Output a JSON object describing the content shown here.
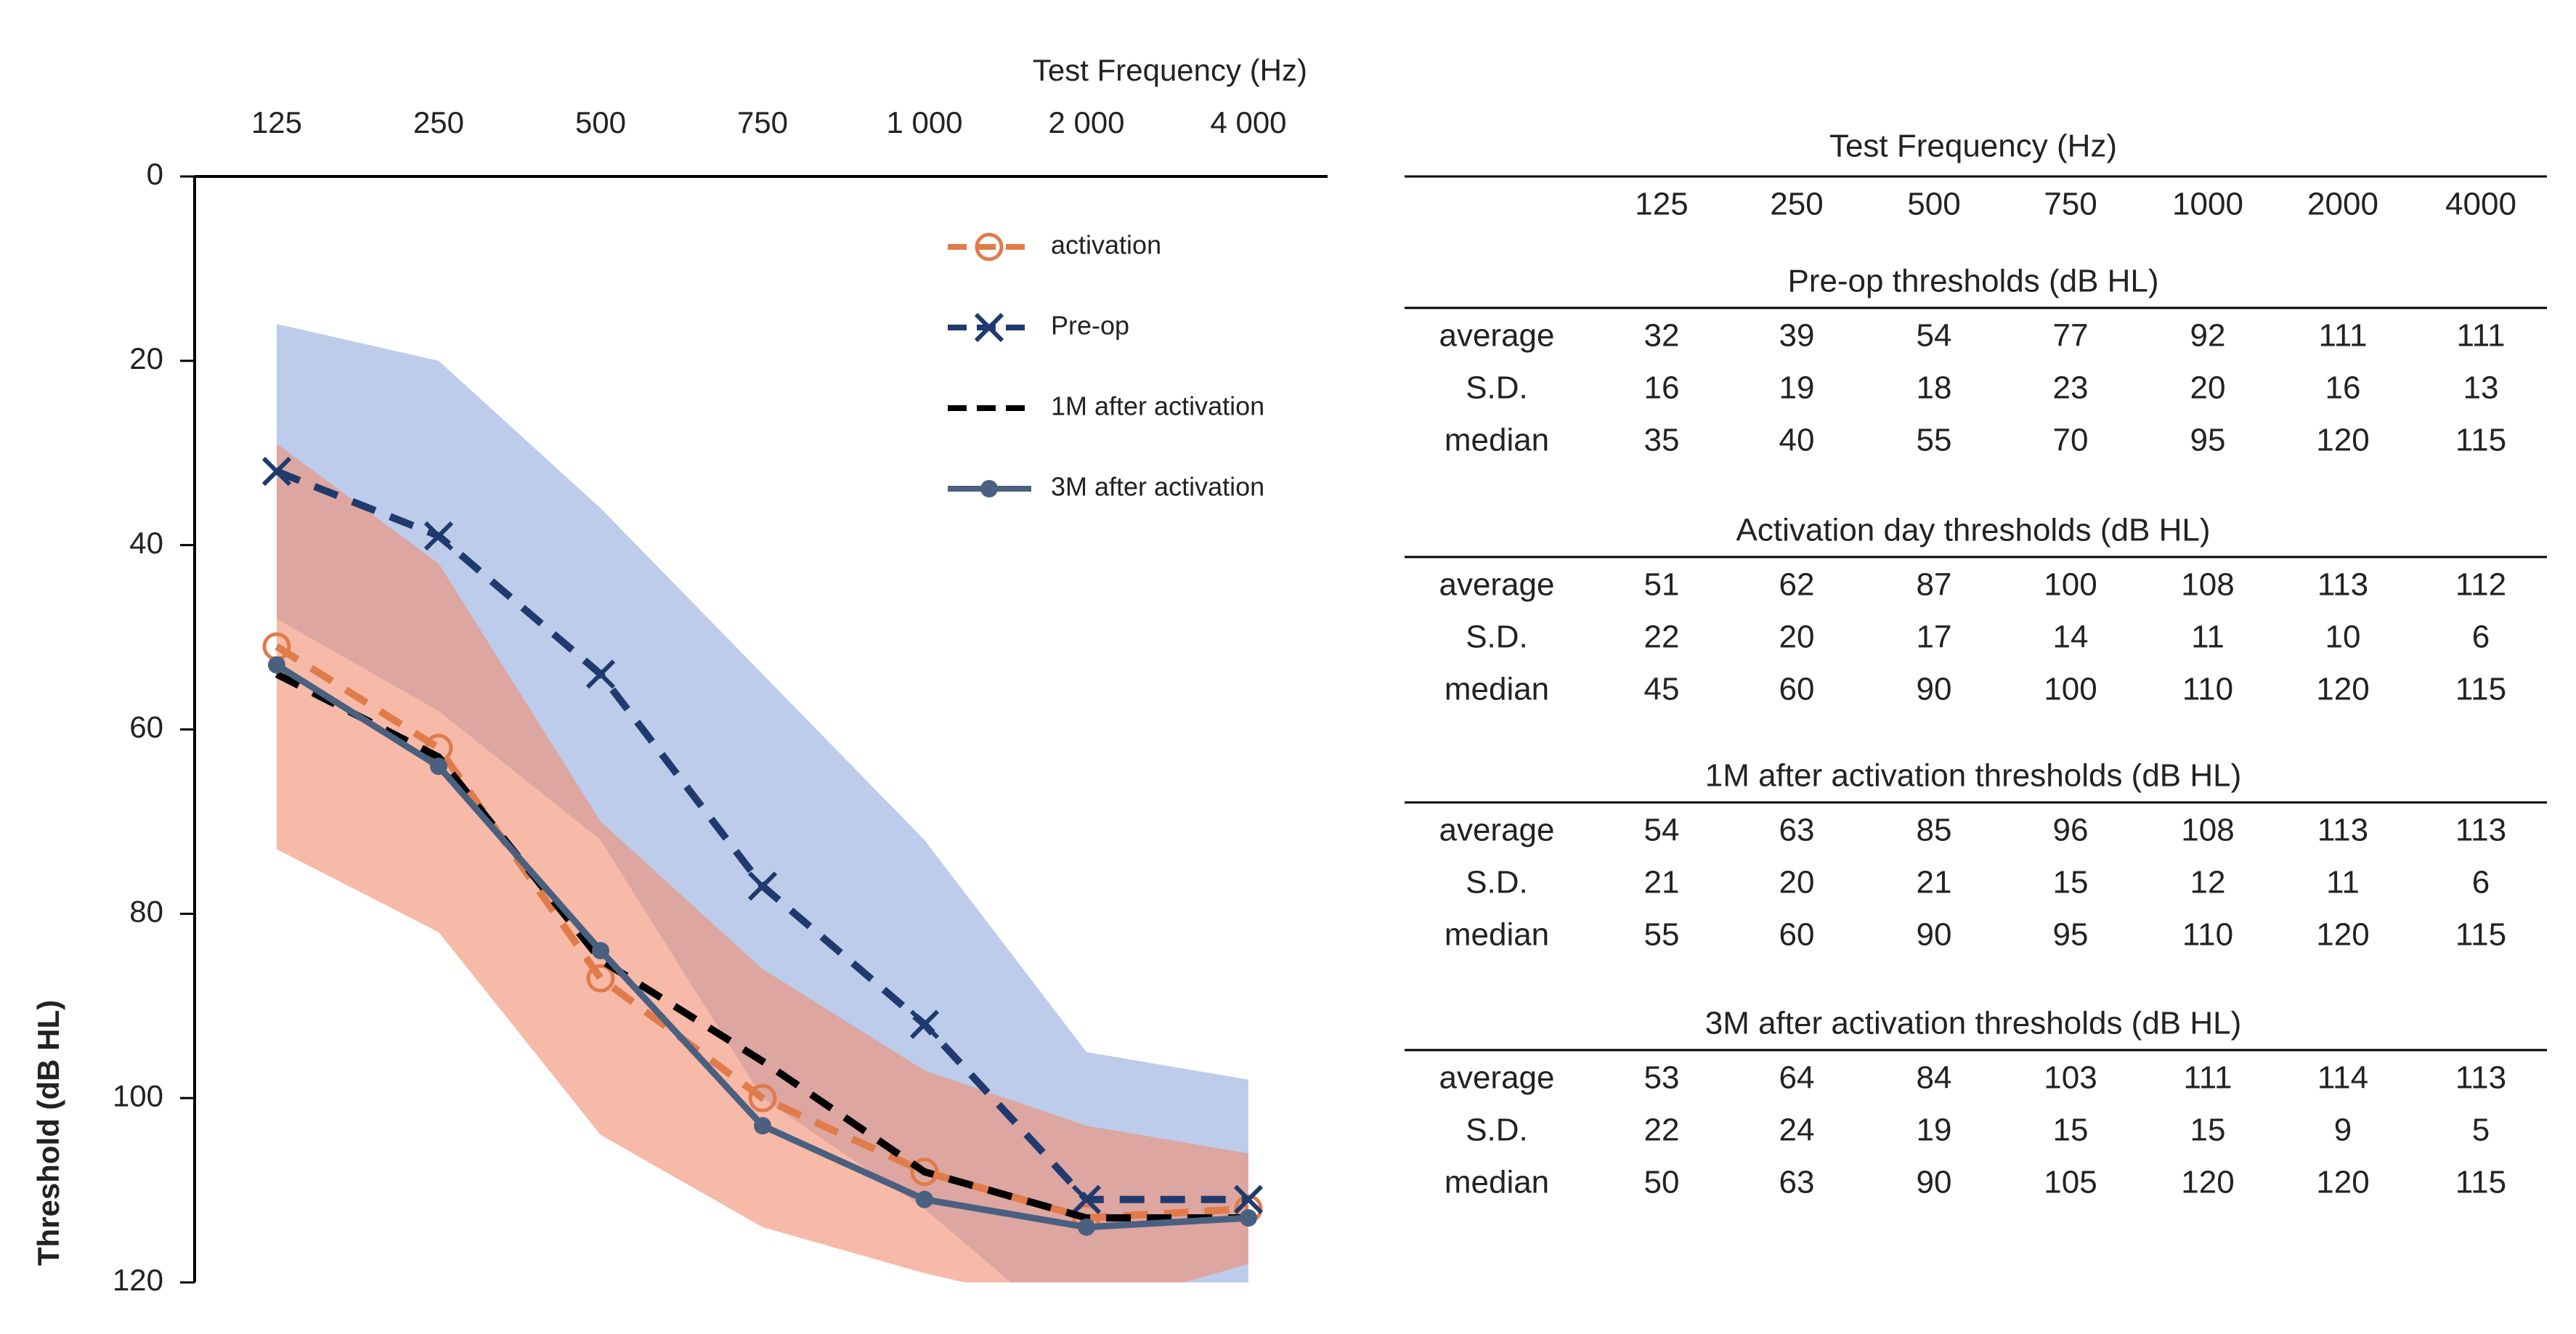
{
  "chart_data": {
    "type": "line",
    "xlabel": "Test Frequency (Hz)",
    "ylabel": "Threshold (dB HL)",
    "categories": [
      "125",
      "250",
      "500",
      "750",
      "1 000",
      "2 000",
      "4 000"
    ],
    "ylim": [
      0,
      120
    ],
    "yticks": [
      0,
      20,
      40,
      60,
      80,
      100,
      120
    ],
    "y_inverted": true,
    "series": [
      {
        "name": "activation",
        "color": "#e07b4a",
        "dash": true,
        "marker": "circle",
        "band_color": "#f48c6e",
        "values": [
          51,
          62,
          87,
          100,
          108,
          113,
          112
        ],
        "sd": [
          22,
          20,
          17,
          14,
          11,
          10,
          6
        ]
      },
      {
        "name": "Pre-op",
        "color": "#1f3a6e",
        "dash": true,
        "marker": "x",
        "band_color": "#8faadc",
        "values": [
          32,
          39,
          54,
          77,
          92,
          111,
          111
        ],
        "sd": [
          16,
          19,
          18,
          23,
          20,
          16,
          13
        ]
      },
      {
        "name": "1M after activation",
        "color": "#000000",
        "dash": true,
        "marker": "none",
        "values": [
          54,
          63,
          85,
          96,
          108,
          113,
          113
        ]
      },
      {
        "name": "3M after activation",
        "color": "#4a6080",
        "dash": false,
        "marker": "dot",
        "values": [
          53,
          64,
          84,
          103,
          111,
          114,
          113
        ]
      }
    ]
  },
  "table": {
    "title": "Test Frequency (Hz)",
    "columns": [
      "125",
      "250",
      "500",
      "750",
      "1000",
      "2000",
      "4000"
    ],
    "sections": [
      {
        "title": "Pre-op thresholds (dB HL)",
        "rows": [
          {
            "label": "average",
            "values": [
              32,
              39,
              54,
              77,
              92,
              111,
              111
            ]
          },
          {
            "label": "S.D.",
            "values": [
              16,
              19,
              18,
              23,
              20,
              16,
              13
            ]
          },
          {
            "label": "median",
            "values": [
              35,
              40,
              55,
              70,
              95,
              120,
              115
            ]
          }
        ]
      },
      {
        "title": "Activation day thresholds (dB HL)",
        "rows": [
          {
            "label": "average",
            "values": [
              51,
              62,
              87,
              100,
              108,
              113,
              112
            ]
          },
          {
            "label": "S.D.",
            "values": [
              22,
              20,
              17,
              14,
              11,
              10,
              6
            ]
          },
          {
            "label": "median",
            "values": [
              45,
              60,
              90,
              100,
              110,
              120,
              115
            ]
          }
        ]
      },
      {
        "title": "1M after activation thresholds (dB HL)",
        "rows": [
          {
            "label": "average",
            "values": [
              54,
              63,
              85,
              96,
              108,
              113,
              113
            ]
          },
          {
            "label": "S.D.",
            "values": [
              21,
              20,
              21,
              15,
              12,
              11,
              6
            ]
          },
          {
            "label": "median",
            "values": [
              55,
              60,
              90,
              95,
              110,
              120,
              115
            ]
          }
        ]
      },
      {
        "title": "3M after activation thresholds (dB HL)",
        "rows": [
          {
            "label": "average",
            "values": [
              53,
              64,
              84,
              103,
              111,
              114,
              113
            ]
          },
          {
            "label": "S.D.",
            "values": [
              22,
              24,
              19,
              15,
              15,
              9,
              5
            ]
          },
          {
            "label": "median",
            "values": [
              50,
              63,
              90,
              105,
              120,
              120,
              115
            ]
          }
        ]
      }
    ]
  }
}
